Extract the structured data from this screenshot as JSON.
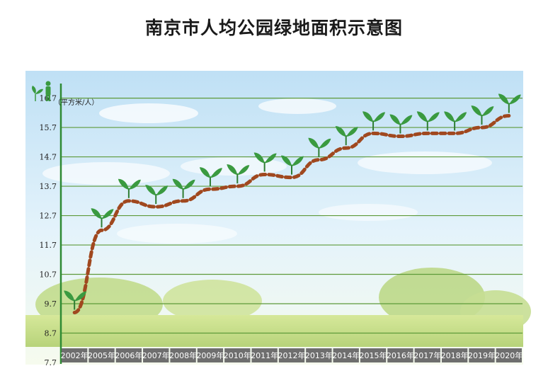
{
  "title": "南京市人均公园绿地面积示意图",
  "chart_data": {
    "type": "line",
    "title": "南京市人均公园绿地面积示意图",
    "ylabel": "（平方米/人）",
    "xlabel": "",
    "categories": [
      "2002年",
      "2005年",
      "2006年",
      "2007年",
      "2008年",
      "2009年",
      "2010年",
      "2011年",
      "2012年",
      "2013年",
      "2014年",
      "2015年",
      "2016年",
      "2017年",
      "2018年",
      "2019年",
      "2020年"
    ],
    "series": [
      {
        "values": [
          9.4,
          12.2,
          13.2,
          13.0,
          13.2,
          13.6,
          13.7,
          14.1,
          14.0,
          14.6,
          15.0,
          15.5,
          15.4,
          15.5,
          15.5,
          15.7,
          16.1
        ]
      }
    ],
    "yticks": [
      "7.7",
      "8.7",
      "9.7",
      "10.7",
      "11.7",
      "12.7",
      "13.7",
      "14.7",
      "15.7",
      "16.7"
    ],
    "ylim": [
      7.7,
      17.1
    ],
    "grid": true,
    "line_color": "#a0481f",
    "leaf_color": "#3a9a40",
    "grid_color": "#5e9a3a",
    "axis_label_bg": "#6e6e6e"
  }
}
